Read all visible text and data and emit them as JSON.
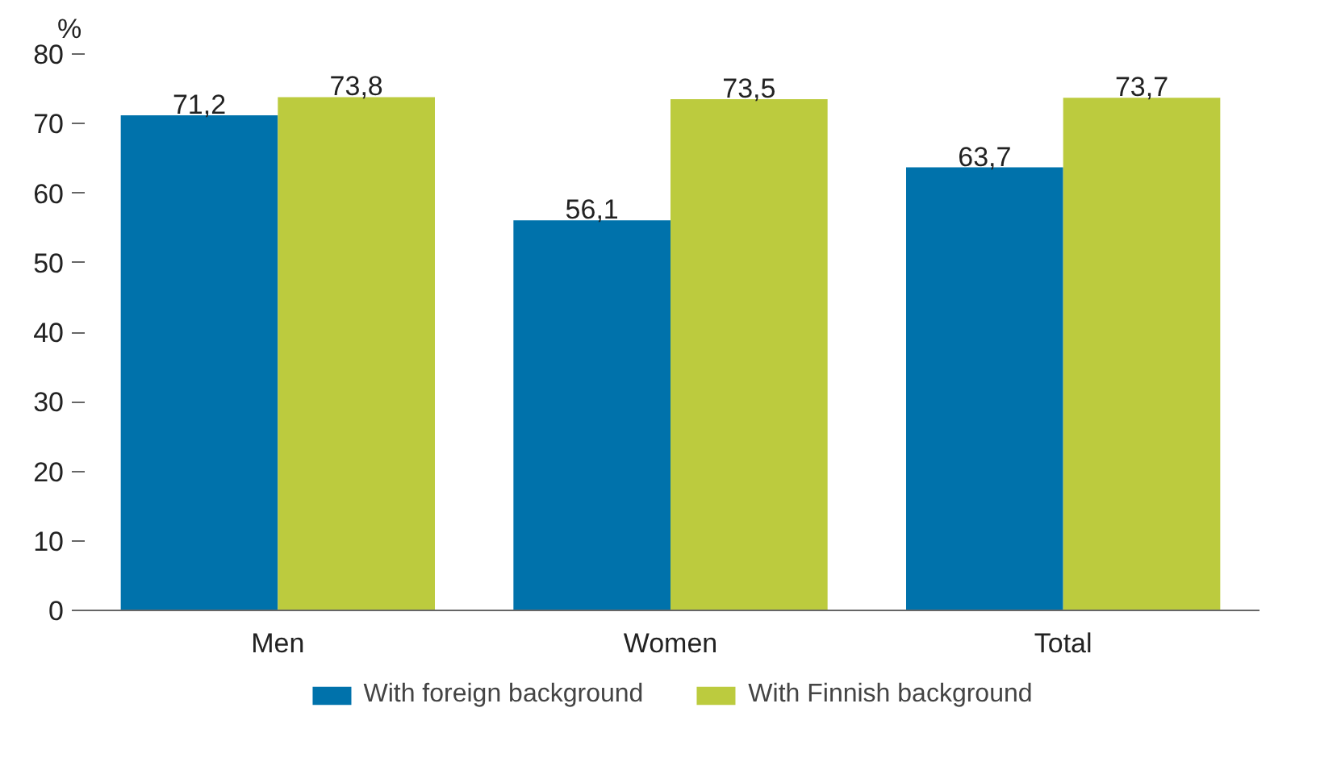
{
  "chart_data": {
    "type": "bar",
    "ylabel": "%",
    "categories": [
      "Men",
      "Women",
      "Total"
    ],
    "series": [
      {
        "name": "With foreign background",
        "color": "#0072ab",
        "values": [
          71.2,
          56.1,
          63.7
        ],
        "value_labels": [
          "71,2",
          "56,1",
          "63,7"
        ]
      },
      {
        "name": "With Finnish background",
        "color": "#bccb3e",
        "values": [
          73.8,
          73.5,
          73.7
        ],
        "value_labels": [
          "73,8",
          "73,5",
          "73,7"
        ]
      }
    ],
    "ylim": [
      0,
      80
    ],
    "yticks": [
      0,
      10,
      20,
      30,
      40,
      50,
      60,
      70,
      80
    ],
    "grid": false,
    "legend": "bottom"
  }
}
